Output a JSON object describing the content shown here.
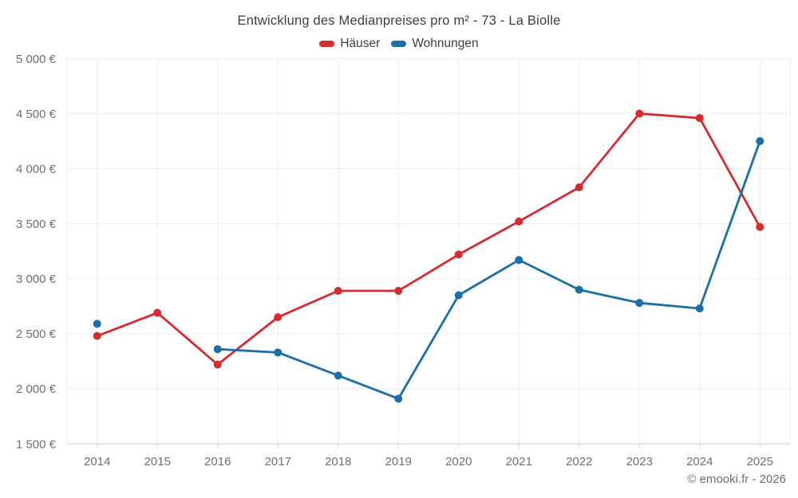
{
  "chart_data": {
    "type": "line",
    "title": "Entwicklung des Medianpreises pro m² - 73 - La Biolle",
    "categories": [
      "2014",
      "2015",
      "2016",
      "2017",
      "2018",
      "2019",
      "2020",
      "2021",
      "2022",
      "2023",
      "2024",
      "2025"
    ],
    "series": [
      {
        "key": "haeuser",
        "name": "Häuser",
        "color": "#d62b2e",
        "values": [
          2480,
          2690,
          2220,
          2650,
          2890,
          2890,
          3220,
          3520,
          3830,
          4500,
          4460,
          3470
        ]
      },
      {
        "key": "wohnungen",
        "name": "Wohnungen",
        "color": "#1a6fa8",
        "values": [
          2590,
          null,
          2360,
          2330,
          2120,
          1910,
          2850,
          3170,
          2900,
          2780,
          2730,
          4250
        ]
      }
    ],
    "xlabel": "",
    "ylabel": "",
    "ylim": [
      1500,
      5000
    ],
    "yticks": {
      "values": [
        5000,
        4500,
        4000,
        3500,
        3000,
        2500,
        2000,
        1500
      ],
      "labels": [
        "5 000 €",
        "4 500 €",
        "4 000 €",
        "3 500 €",
        "3 000 €",
        "2 500 €",
        "2 000 €",
        "1 500 €"
      ]
    },
    "grid": true,
    "legend_position": "top"
  },
  "footer": {
    "copyright": "© emooki.fr - 2026"
  }
}
